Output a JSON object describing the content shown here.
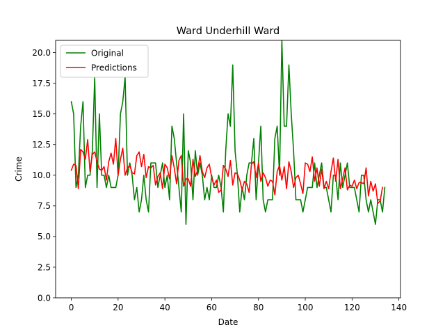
{
  "chart_data": {
    "type": "line",
    "title": "Ward Underhill Ward",
    "xlabel": "Date",
    "ylabel": "Crime",
    "xlim": [
      -6.7,
      140.7
    ],
    "ylim": [
      0.0,
      21.0
    ],
    "xticks": [
      0,
      20,
      40,
      60,
      80,
      100,
      120,
      140
    ],
    "xtick_labels": [
      "0",
      "20",
      "40",
      "60",
      "80",
      "100",
      "120",
      "140"
    ],
    "yticks": [
      0,
      2.5,
      5,
      7.5,
      10,
      12.5,
      15,
      17.5,
      20
    ],
    "ytick_labels": [
      "0.0",
      "2.5",
      "5.0",
      "7.5",
      "10.0",
      "12.5",
      "15.0",
      "17.5",
      "20.0"
    ],
    "grid": false,
    "legend": "top-left",
    "series": [
      {
        "name": "Original",
        "color": "#008000",
        "values": [
          16,
          15,
          9,
          10,
          14,
          16,
          9,
          10,
          10,
          12,
          18,
          9,
          15,
          10,
          10,
          9,
          10,
          9,
          9,
          9,
          10,
          15,
          16,
          18,
          10,
          11,
          10,
          8,
          9,
          7,
          8,
          10,
          8,
          7,
          11,
          11,
          11,
          9,
          10,
          11,
          9,
          10,
          8,
          14,
          13,
          11,
          9,
          7,
          15,
          6,
          12,
          11,
          8,
          12,
          10,
          11,
          10,
          8,
          9,
          8,
          10,
          9,
          9,
          10,
          9,
          7,
          12,
          15,
          14,
          19,
          12,
          10,
          7,
          9,
          8,
          10,
          11,
          11,
          13,
          8,
          11,
          14,
          8,
          7,
          8,
          8,
          8,
          13,
          14,
          10,
          21,
          14,
          14,
          19,
          15,
          12,
          8,
          8,
          8,
          7,
          8,
          9,
          9,
          9,
          11,
          9,
          10,
          11,
          9,
          9,
          8,
          7,
          10,
          10,
          8,
          11,
          9,
          10,
          11,
          9,
          9,
          9,
          8,
          7,
          10,
          10,
          8,
          7,
          8,
          7,
          6,
          8,
          8,
          7,
          9
        ]
      },
      {
        "name": "Predictions",
        "color": "#ff0000",
        "values": [
          10.4,
          10.9,
          10.8,
          8.9,
          12.1,
          11.9,
          11.3,
          12.9,
          10.3,
          11.7,
          11.9,
          11.1,
          10.5,
          10.4,
          10.7,
          9.6,
          11.1,
          11.8,
          10.9,
          13.0,
          10.0,
          11.3,
          12.2,
          10.0,
          10.6,
          10.8,
          10.2,
          10.1,
          11.6,
          11.9,
          10.7,
          11.7,
          9.8,
          10.7,
          10.6,
          10.8,
          9.2,
          9.9,
          10.2,
          8.9,
          10.9,
          10.6,
          9.7,
          11.6,
          10.6,
          9.3,
          11.2,
          11.6,
          9.1,
          9.7,
          9.7,
          9.1,
          11.3,
          9.9,
          10.4,
          11.6,
          10.3,
          9.8,
          10.6,
          10.9,
          9.8,
          9.2,
          9.6,
          8.6,
          8.8,
          10.8,
          10.5,
          9.9,
          11.2,
          9.2,
          10.2,
          10.1,
          9.6,
          8.8,
          9.5,
          9.3,
          8.6,
          10.9,
          11.1,
          9.8,
          11.0,
          9.5,
          10.2,
          9.8,
          9.1,
          9.6,
          9.5,
          8.4,
          10.3,
          10.8,
          9.6,
          10.7,
          8.9,
          11.1,
          10.3,
          9.0,
          9.8,
          10.0,
          9.3,
          8.5,
          11.0,
          10.9,
          10.3,
          11.5,
          9.5,
          10.6,
          9.1,
          10.5,
          8.9,
          9.5,
          8.9,
          10.3,
          11.4,
          9.5,
          11.3,
          8.9,
          9.7,
          10.6,
          8.8,
          9.2,
          9.1,
          9.6,
          8.9,
          9.4,
          9.4,
          9.3,
          10.6,
          8.3,
          9.5,
          8.7,
          9.3,
          7.7,
          7.9,
          9.0
        ]
      }
    ]
  }
}
